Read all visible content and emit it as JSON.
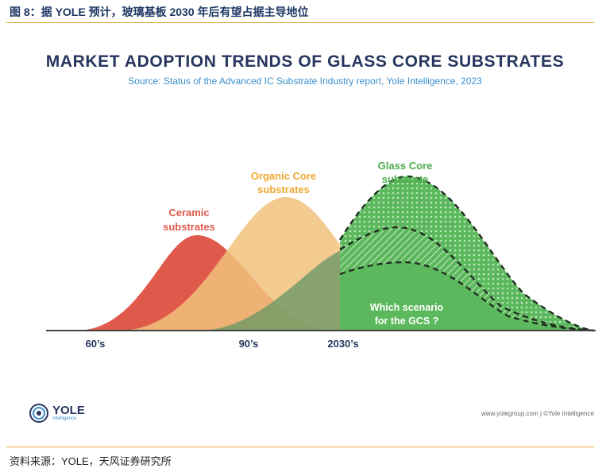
{
  "header": {
    "caption": "图 8：据 YOLE 预计，玻璃基板 2030 年后有望占据主导地位"
  },
  "footer": {
    "source": "资料来源：YOLE，天风证券研究所"
  },
  "chart_data": {
    "type": "area",
    "title": "MARKET ADOPTION TRENDS OF GLASS CORE SUBSTRATES",
    "subtitle": "Source: Status of the Advanced IC Substrate Industry report, Yole Intelligence, 2023",
    "x_ticks": [
      "60’s",
      "90’s",
      "2030’s"
    ],
    "grid": false,
    "series": [
      {
        "name": "Ceramic substrates",
        "label_lines": [
          "Ceramic",
          "substrates"
        ],
        "color": "#e05a4c"
      },
      {
        "name": "Organic Core substrates",
        "label_lines": [
          "Organic Core",
          "substrates"
        ],
        "color": "#f1c27d"
      },
      {
        "name": "Glass Core substrate",
        "label_lines": [
          "Glass Core",
          "substrate"
        ],
        "color": "#5cb85c"
      }
    ],
    "annotation": [
      "Which scenario",
      "for the GCS ?"
    ],
    "colors": {
      "title": "#26365e",
      "subtitle": "#3a8fcd",
      "ceramic_label": "#e05a4c",
      "organic_label": "#f0a830",
      "glass_label": "#4cae4c",
      "scenario_text": "#ffffff"
    }
  },
  "branding": {
    "logo_name": "YOLE",
    "logo_sub": "Intelligence",
    "credit": "www.yolegroup.com | ©Yole Intelligence"
  }
}
